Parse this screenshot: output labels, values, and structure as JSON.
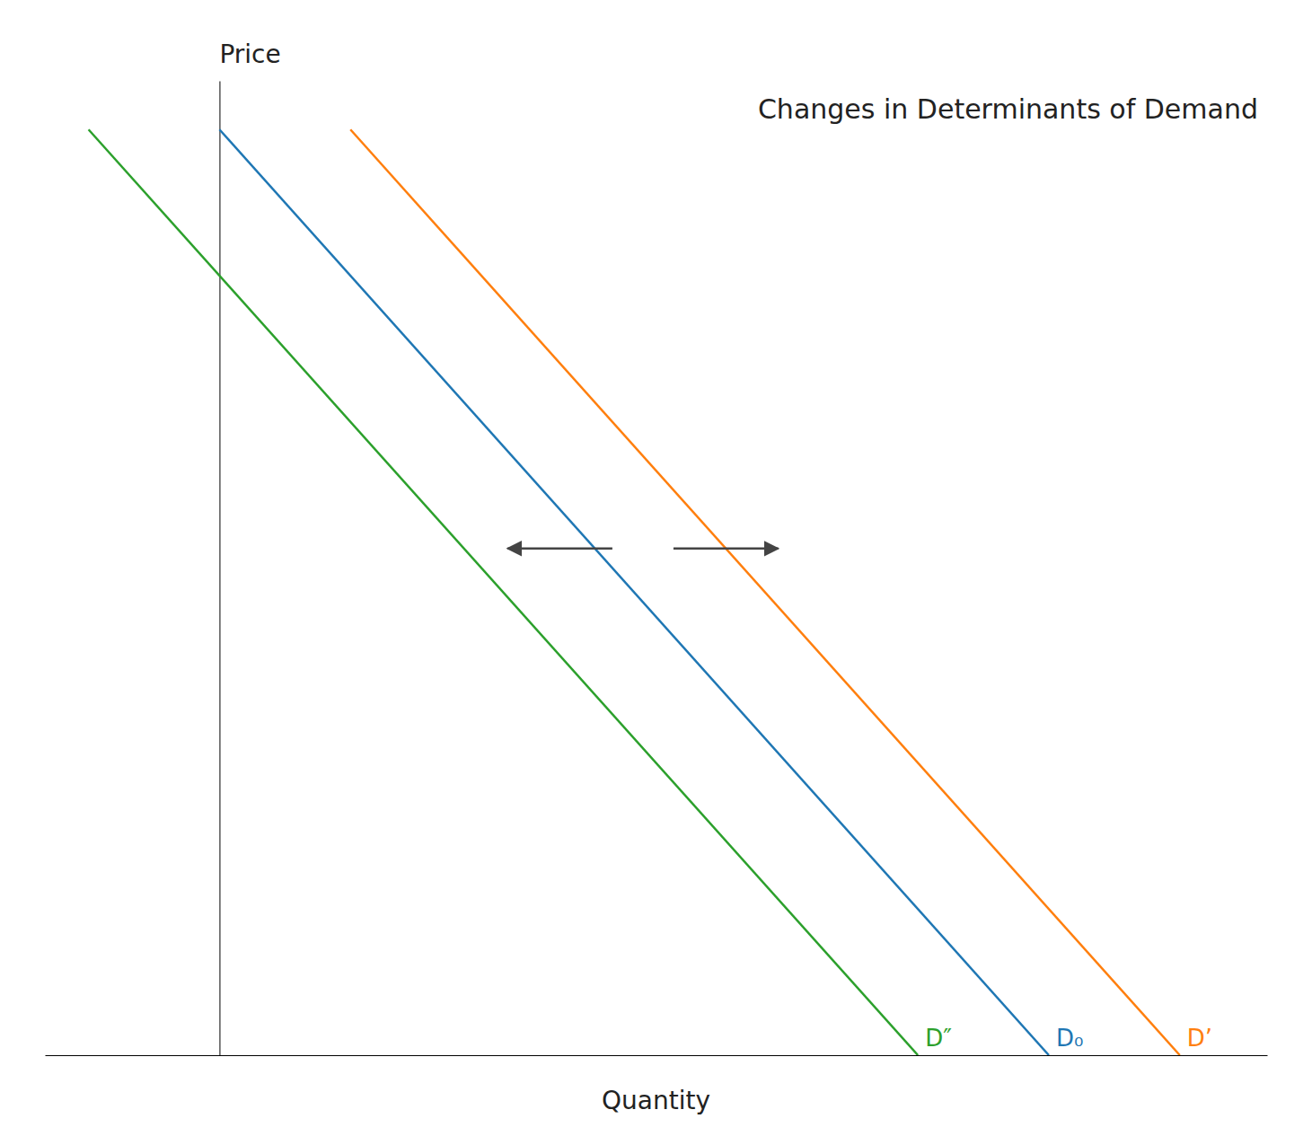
{
  "chart_data": {
    "type": "line",
    "title": "Changes in Determinants of Demand",
    "xlabel": "Quantity",
    "ylabel": "Price",
    "xlim": [
      -2,
      12
    ],
    "ylim": [
      0,
      10
    ],
    "xticks": [],
    "yticks": [],
    "tick_labels": false,
    "grid": false,
    "series": [
      {
        "name": "D₀",
        "x": [
          0.0,
          9.5
        ],
        "values": [
          9.5,
          0.0
        ]
      },
      {
        "name": "D’",
        "x": [
          1.5,
          11.0
        ],
        "values": [
          9.5,
          0.0
        ]
      },
      {
        "name": "D″",
        "x": [
          -1.5,
          8.0
        ],
        "values": [
          9.5,
          0.0
        ]
      }
    ],
    "arrows": [
      {
        "x": [
          4.5,
          3.3
        ],
        "values": [
          5.2,
          5.2
        ]
      },
      {
        "x": [
          5.2,
          6.4
        ],
        "values": [
          5.2,
          5.2
        ]
      }
    ]
  }
}
